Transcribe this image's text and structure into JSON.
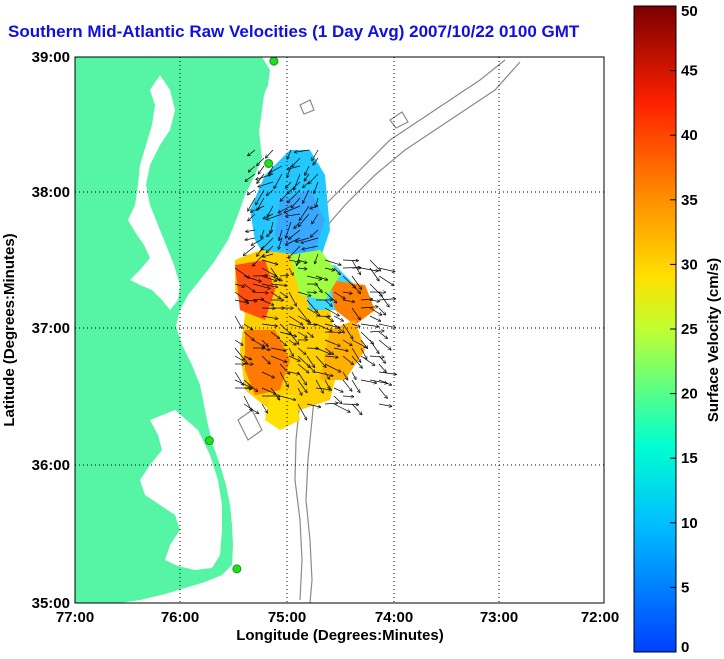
{
  "title": "Southern Mid-Atlantic Raw Velocities (1 Day Avg) 2007/10/22 0100 GMT",
  "axes": {
    "xlabel": "Longitude (Degrees:Minutes)",
    "ylabel": "Latitude (Degrees:Minutes)",
    "x_ticks": [
      "77:00",
      "76:00",
      "75:00",
      "74:00",
      "73:00",
      "72:00"
    ],
    "y_ticks": [
      "39:00",
      "38:00",
      "37:00",
      "36:00",
      "35:00"
    ],
    "xlim": [
      -77,
      -72
    ],
    "ylim": [
      35,
      39
    ]
  },
  "colorbar": {
    "label": "Surface Velocity (cm/s)",
    "ticks": [
      "50",
      "45",
      "40",
      "35",
      "30",
      "25",
      "20",
      "15",
      "10",
      "5",
      "0"
    ],
    "range": [
      0,
      50
    ]
  },
  "colors": {
    "land": "#55f5a5",
    "ocean": "#ffffff",
    "bathymetry": "#8a8a8a",
    "station": "#22dd22",
    "title": "#1010e0"
  },
  "stations": [
    {
      "lon": -75.12,
      "lat": 38.97
    },
    {
      "lon": -75.17,
      "lat": 38.22
    },
    {
      "lon": -75.73,
      "lat": 36.19
    },
    {
      "lon": -75.47,
      "lat": 35.25
    }
  ]
}
